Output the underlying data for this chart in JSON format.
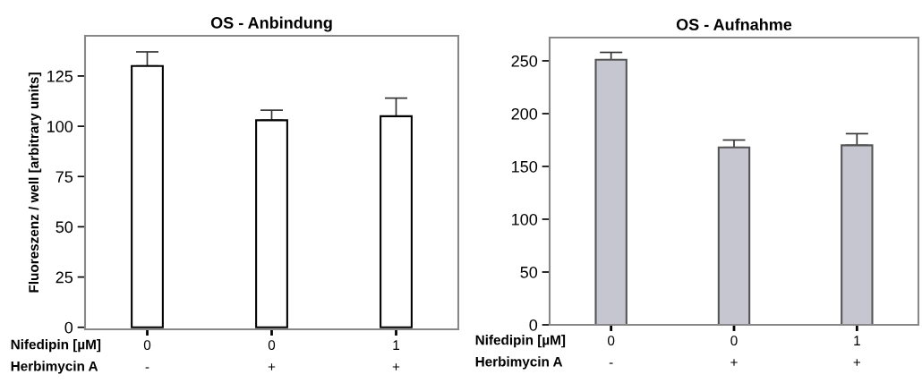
{
  "chart_data": [
    {
      "type": "bar",
      "title": "OS - Anbindung",
      "ylabel": "Fluoreszenz / well [arbitrary units]",
      "categories": [
        "0\n-",
        "0\n+",
        "1\n+"
      ],
      "values": [
        130,
        103,
        105
      ],
      "errors": [
        [
          130,
          137
        ],
        [
          103,
          108
        ],
        [
          105,
          114
        ]
      ],
      "color": "#ffffff",
      "ylim": [
        -1,
        145
      ],
      "yticks": [
        0,
        25,
        50,
        75,
        100,
        125
      ],
      "grid": false,
      "annotations": [
        "Nifedipin [µM]\nHerbimycin A"
      ]
    },
    {
      "type": "bar",
      "title": "OS - Aufnahme",
      "categories": [
        "0\n-",
        "0\n+",
        "1\n+"
      ],
      "values": [
        251,
        168,
        170
      ],
      "errors": [
        [
          251,
          258
        ],
        [
          168,
          175
        ],
        [
          170,
          181
        ]
      ],
      "color": "#c5c6d0",
      "ylim": [
        0,
        272
      ],
      "yticks": [
        0,
        50,
        100,
        150,
        200,
        250
      ],
      "grid": false,
      "annotations": [
        "Nifedipin [µM]\nHerbimycin A"
      ]
    }
  ]
}
